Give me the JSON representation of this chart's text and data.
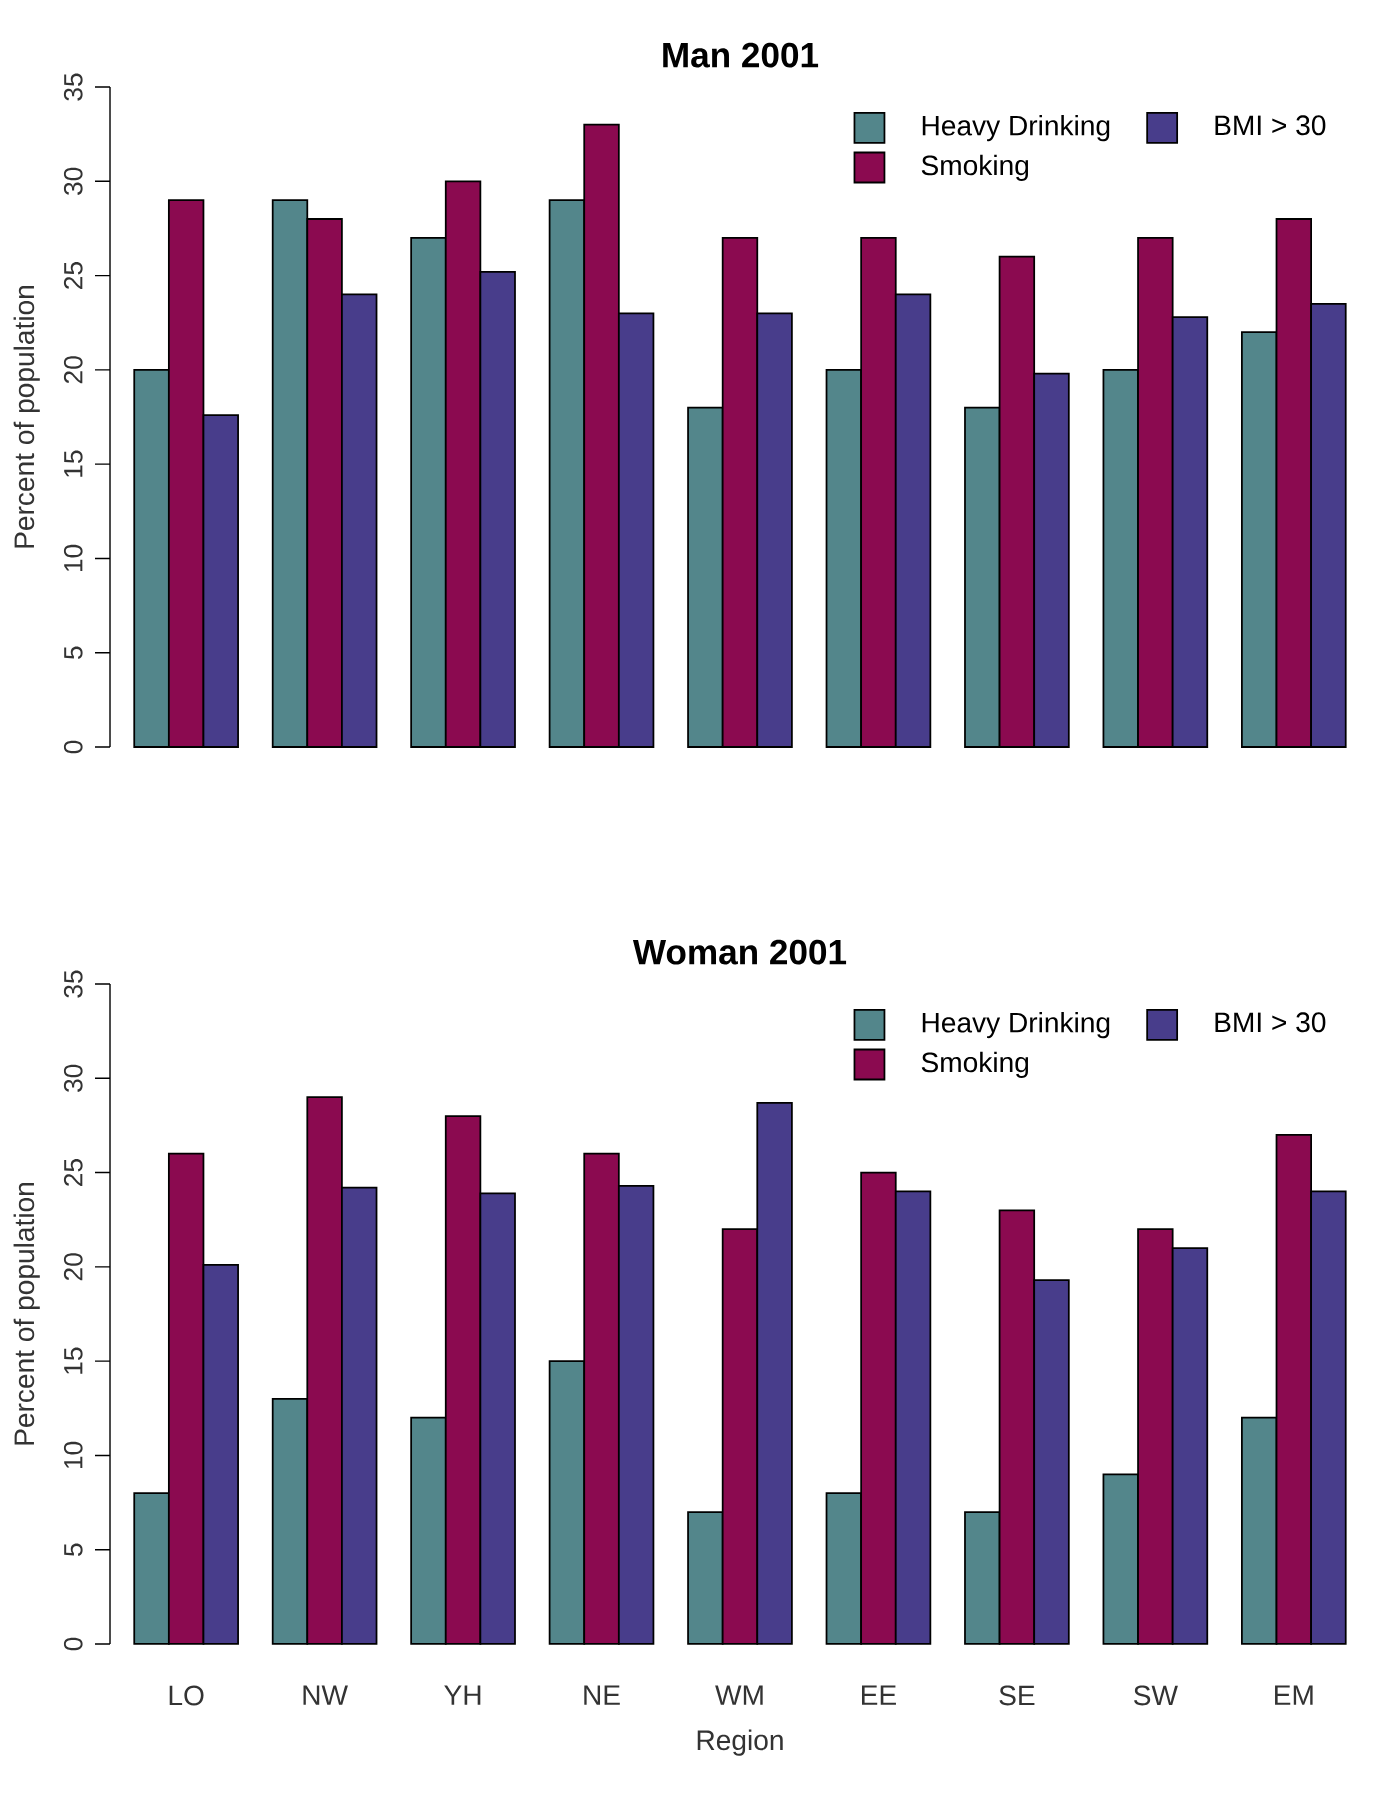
{
  "chart_data": [
    {
      "type": "bar",
      "title": "Man 2001",
      "ylabel": "Percent of population",
      "categories": [
        null,
        null,
        null,
        null,
        null,
        null,
        null,
        null,
        null
      ],
      "ylim": [
        0,
        35
      ],
      "yticks": [
        0,
        5,
        10,
        15,
        20,
        25,
        30,
        35
      ],
      "legend": "top right",
      "tick_labels": "y",
      "grid": false,
      "series": [
        {
          "name": "Heavy Drinking",
          "color": "#53868b",
          "values": [
            20,
            29,
            27,
            29,
            18,
            20,
            18,
            20,
            22
          ]
        },
        {
          "name": "Smoking",
          "color": "#8b0a50",
          "values": [
            29,
            28,
            30,
            33,
            27,
            27,
            26,
            27,
            28
          ]
        },
        {
          "name": "BMI > 30",
          "color": "#483d8b",
          "values": [
            17.6,
            24,
            25.2,
            23,
            23,
            24,
            19.8,
            22.8,
            23.5
          ]
        }
      ]
    },
    {
      "type": "bar",
      "title": "Woman 2001",
      "ylabel": "Percent of population",
      "xlabel": "Region",
      "categories": [
        "LO",
        "NW",
        "YH",
        "NE",
        "WM",
        "EE",
        "SE",
        "SW",
        "EM"
      ],
      "ylim": [
        0,
        35
      ],
      "yticks": [
        0,
        5,
        10,
        15,
        20,
        25,
        30,
        35
      ],
      "legend": "top right",
      "grid": false,
      "series": [
        {
          "name": "Heavy Drinking",
          "color": "#53868b",
          "values": [
            8,
            13,
            12,
            15,
            7,
            8,
            7,
            9,
            12
          ]
        },
        {
          "name": "Smoking",
          "color": "#8b0a50",
          "values": [
            26,
            29,
            28,
            26,
            22,
            25,
            23,
            22,
            27
          ]
        },
        {
          "name": "BMI > 30",
          "color": "#483d8b",
          "values": [
            20.1,
            24.2,
            23.9,
            24.3,
            28.7,
            24,
            19.3,
            21,
            24
          ]
        }
      ]
    }
  ]
}
